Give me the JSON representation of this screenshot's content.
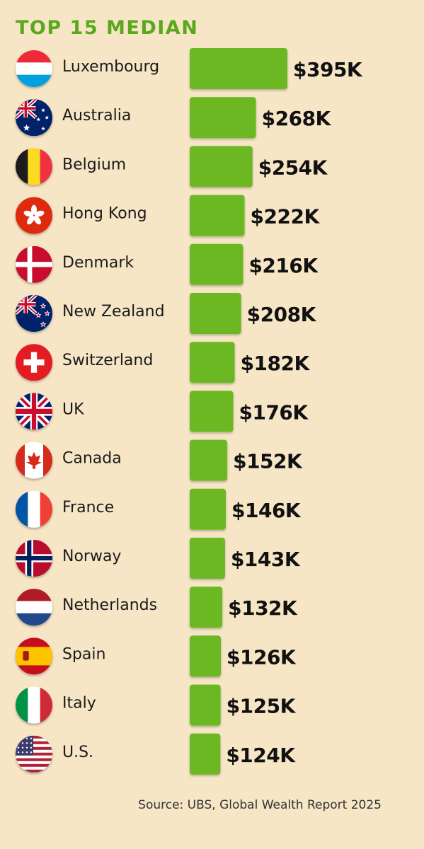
{
  "title": "TOP 15 MEDIAN",
  "source": "Source: UBS, Global Wealth Report 2025",
  "colors": {
    "bar": "#6cb823",
    "title": "#5aa81e",
    "background": "#f7e6c6"
  },
  "chart_data": {
    "type": "bar",
    "orientation": "horizontal",
    "categories": [
      "Luxembourg",
      "Australia",
      "Belgium",
      "Hong Kong",
      "Denmark",
      "New Zealand",
      "Switzerland",
      "UK",
      "Canada",
      "France",
      "Norway",
      "Netherlands",
      "Spain",
      "Italy",
      "U.S."
    ],
    "values": [
      395,
      268,
      254,
      222,
      216,
      208,
      182,
      176,
      152,
      146,
      143,
      132,
      126,
      125,
      124
    ],
    "data_labels": [
      "$395K",
      "$268K",
      "$254K",
      "$222K",
      "$216K",
      "$208K",
      "$182K",
      "$176K",
      "$152K",
      "$146K",
      "$143K",
      "$132K",
      "$126K",
      "$125K",
      "$124K"
    ],
    "flags": [
      "luxembourg-flag-icon",
      "australia-flag-icon",
      "belgium-flag-icon",
      "hong-kong-flag-icon",
      "denmark-flag-icon",
      "new-zealand-flag-icon",
      "switzerland-flag-icon",
      "uk-flag-icon",
      "canada-flag-icon",
      "france-flag-icon",
      "norway-flag-icon",
      "netherlands-flag-icon",
      "spain-flag-icon",
      "italy-flag-icon",
      "us-flag-icon"
    ],
    "grid": false
  }
}
